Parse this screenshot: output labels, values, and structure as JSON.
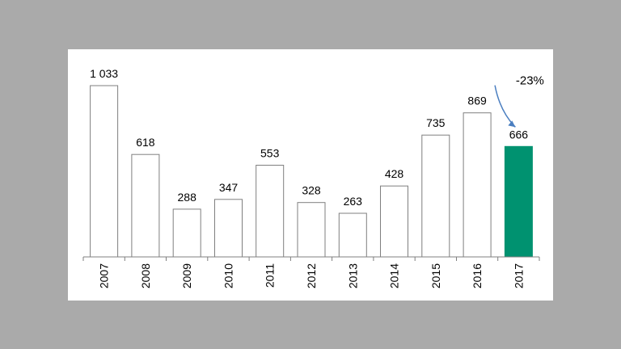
{
  "chart_data": {
    "type": "bar",
    "title": "",
    "xlabel": "",
    "ylabel": "",
    "categories": [
      "2007",
      "2008",
      "2009",
      "2010",
      "2011",
      "2012",
      "2013",
      "2014",
      "2015",
      "2016",
      "2017"
    ],
    "values": [
      1033,
      618,
      288,
      347,
      553,
      328,
      263,
      428,
      735,
      869,
      666
    ],
    "value_labels": [
      "1 033",
      "618",
      "288",
      "347",
      "553",
      "328",
      "263",
      "428",
      "735",
      "869",
      "666"
    ],
    "ylim": [
      0,
      1033
    ],
    "grid": false,
    "highlight_index": 10,
    "annotation": {
      "text": "-23%",
      "from_index": 9,
      "to_index": 10
    }
  },
  "colors": {
    "background": "#aaaaaa",
    "panel": "#ffffff",
    "bar_fill": "#ffffff",
    "bar_stroke": "#7f7f7f",
    "highlight_fill": "#009270",
    "arrow": "#4a7ec0",
    "axis": "#7f7f7f"
  }
}
